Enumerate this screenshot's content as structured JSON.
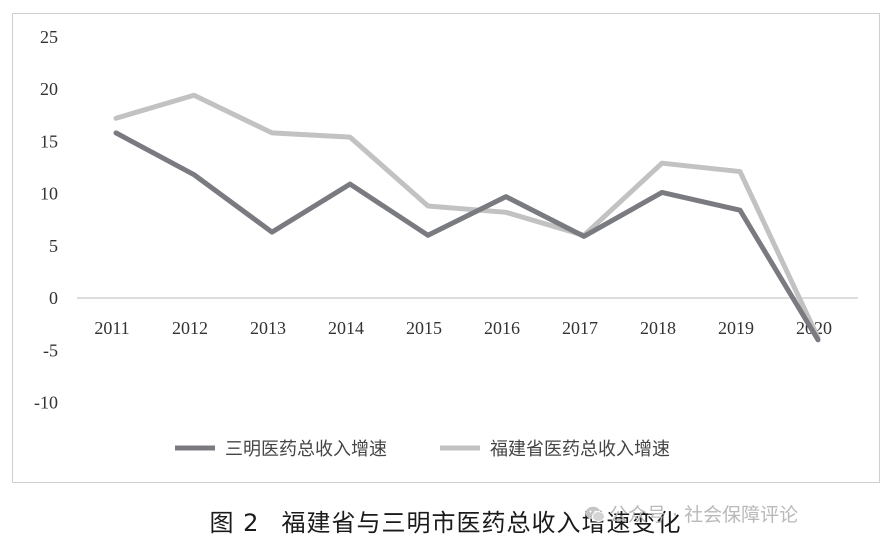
{
  "chart_data": {
    "type": "line",
    "x": [
      "2011",
      "2012",
      "2013",
      "2014",
      "2015",
      "2016",
      "2017",
      "2018",
      "2019",
      "2020"
    ],
    "series": [
      {
        "name": "三明医药总收入增速",
        "values": [
          15.8,
          11.8,
          6.3,
          10.9,
          6.0,
          9.7,
          5.9,
          10.1,
          8.4,
          -4.0
        ],
        "color": "#7a7b80"
      },
      {
        "name": "福建省医药总收入增速",
        "values": [
          17.2,
          19.4,
          15.8,
          15.4,
          8.8,
          8.2,
          6.0,
          12.9,
          12.1,
          -3.8
        ],
        "color": "#c2c2c2"
      }
    ],
    "ylim": [
      -10,
      25
    ],
    "yticks": [
      "25",
      "20",
      "15",
      "10",
      "5",
      "0",
      "-5",
      "-10"
    ],
    "grid": false,
    "legend": "bottom"
  },
  "caption": {
    "num": "图 2",
    "text": "福建省与三明市医药总收入增速变化"
  },
  "watermark": {
    "text": "公众号 · 社会保障评论",
    "icon": "wechat-icon"
  }
}
